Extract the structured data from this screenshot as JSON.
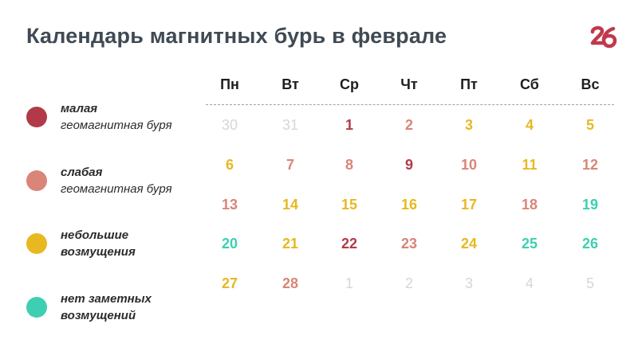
{
  "title": "Календарь магнитных бурь в феврале",
  "colors": {
    "small_storm": "#b23a48",
    "weak_storm": "#d98577",
    "minor": "#e8b820",
    "none": "#3ecfb2",
    "other_month": "#d6d6d6",
    "logo": "#c0394a"
  },
  "legend": [
    {
      "key": "small_storm",
      "line1": "малая",
      "line2": "геомагнитная буря"
    },
    {
      "key": "weak_storm",
      "line1": "слабая",
      "line2": "геомагнитная буря"
    },
    {
      "key": "minor",
      "line1": "небольшие",
      "line2": "возмущения"
    },
    {
      "key": "none",
      "line1": "нет заметных",
      "line2": "возмущений"
    }
  ],
  "weekdays": [
    "Пн",
    "Вт",
    "Ср",
    "Чт",
    "Пт",
    "Сб",
    "Вс"
  ],
  "days": [
    [
      {
        "d": "30",
        "s": "other_month"
      },
      {
        "d": "31",
        "s": "other_month"
      },
      {
        "d": "1",
        "s": "small_storm"
      },
      {
        "d": "2",
        "s": "weak_storm"
      },
      {
        "d": "3",
        "s": "minor"
      },
      {
        "d": "4",
        "s": "minor"
      },
      {
        "d": "5",
        "s": "minor"
      }
    ],
    [
      {
        "d": "6",
        "s": "minor"
      },
      {
        "d": "7",
        "s": "weak_storm"
      },
      {
        "d": "8",
        "s": "weak_storm"
      },
      {
        "d": "9",
        "s": "small_storm"
      },
      {
        "d": "10",
        "s": "weak_storm"
      },
      {
        "d": "11",
        "s": "minor"
      },
      {
        "d": "12",
        "s": "weak_storm"
      }
    ],
    [
      {
        "d": "13",
        "s": "weak_storm"
      },
      {
        "d": "14",
        "s": "minor"
      },
      {
        "d": "15",
        "s": "minor"
      },
      {
        "d": "16",
        "s": "minor"
      },
      {
        "d": "17",
        "s": "minor"
      },
      {
        "d": "18",
        "s": "weak_storm"
      },
      {
        "d": "19",
        "s": "none"
      }
    ],
    [
      {
        "d": "20",
        "s": "none"
      },
      {
        "d": "21",
        "s": "minor"
      },
      {
        "d": "22",
        "s": "small_storm"
      },
      {
        "d": "23",
        "s": "weak_storm"
      },
      {
        "d": "24",
        "s": "minor"
      },
      {
        "d": "25",
        "s": "none"
      },
      {
        "d": "26",
        "s": "none"
      }
    ],
    [
      {
        "d": "27",
        "s": "minor"
      },
      {
        "d": "28",
        "s": "weak_storm"
      },
      {
        "d": "1",
        "s": "other_month"
      },
      {
        "d": "2",
        "s": "other_month"
      },
      {
        "d": "3",
        "s": "other_month"
      },
      {
        "d": "4",
        "s": "other_month"
      },
      {
        "d": "5",
        "s": "other_month"
      }
    ]
  ],
  "logo": {
    "icon": "logo-26-icon",
    "text": "26"
  }
}
